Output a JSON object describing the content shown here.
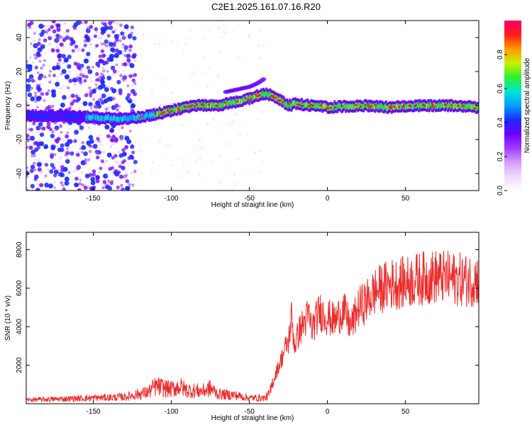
{
  "figure_title": "C2E1.2025.161.07.16.R20",
  "colors": {
    "snr_line": "#ee2b2b",
    "axis": "#000000",
    "background": "#ffffff",
    "colormap": [
      "#ffffff",
      "#f1d8ff",
      "#d49bff",
      "#a23bff",
      "#6a00ff",
      "#1a2cff",
      "#00a0ff",
      "#00e6d0",
      "#2ef02e",
      "#c8f000",
      "#ff9a00",
      "#ff1a1a",
      "#ff0066"
    ]
  },
  "chart_data": [
    {
      "type": "heatmap",
      "title": "C2E1.2025.161.07.16.R20",
      "xlabel": "Height of straight line (km)",
      "ylabel": "Frequency (Hz)",
      "xlim": [
        -193,
        97
      ],
      "ylim": [
        -50,
        50
      ],
      "xticks": [
        -150,
        -100,
        -50,
        0,
        50
      ],
      "yticks": [
        -40,
        -20,
        0,
        20,
        40
      ],
      "colorbar": {
        "label": "Normalized spectral amplitude",
        "range": [
          0,
          1
        ],
        "ticks": [
          "0.0",
          "0.2",
          "0.4",
          "0.6",
          "0.8"
        ]
      },
      "ridge": {
        "description_points_x": [
          -193,
          -170,
          -150,
          -130,
          -115,
          -100,
          -85,
          -70,
          -60,
          -50,
          -45,
          -40,
          -35,
          -30,
          -25,
          -20,
          -10,
          0,
          20,
          40,
          60,
          80,
          97
        ],
        "frequency_hz": [
          -6,
          -6,
          -7,
          -8,
          -6,
          -3,
          0,
          0,
          2,
          4,
          6,
          7,
          6,
          3,
          0,
          1,
          0,
          -1,
          0,
          -1,
          0,
          0,
          -1
        ]
      },
      "secondary_feature": {
        "x": [
          -65,
          -55,
          -50,
          -45,
          -40
        ],
        "frequency_hz": [
          8,
          10,
          11,
          13,
          16
        ]
      }
    },
    {
      "type": "line",
      "xlabel": "Height of straight line (km)",
      "ylabel": "SNR (10 * v/v)",
      "xlim": [
        -193,
        97
      ],
      "ylim": [
        0,
        8900
      ],
      "xticks": [
        -150,
        -100,
        -50,
        0,
        50
      ],
      "yticks": [
        2000,
        4000,
        6000,
        8000
      ],
      "series": [
        {
          "x": [
            -193,
            -170,
            -150,
            -130,
            -115,
            -110,
            -100,
            -95,
            -90,
            -80,
            -75,
            -70,
            -60,
            -50,
            -40,
            -37,
            -33,
            -30,
            -27,
            -25,
            -23,
            -21,
            -18,
            -15,
            -12,
            -10,
            -5,
            0,
            5,
            10,
            15,
            20,
            25,
            30,
            40,
            50,
            60,
            70,
            80,
            90,
            97
          ],
          "values": [
            200,
            250,
            300,
            350,
            600,
            900,
            750,
            900,
            700,
            650,
            800,
            500,
            450,
            300,
            300,
            500,
            1600,
            2200,
            2900,
            3200,
            4500,
            3000,
            3800,
            4200,
            4600,
            3900,
            4800,
            4500,
            4300,
            4900,
            4000,
            5000,
            5300,
            5800,
            6200,
            6300,
            6500,
            6600,
            6500,
            6400,
            6500
          ]
        }
      ]
    }
  ]
}
